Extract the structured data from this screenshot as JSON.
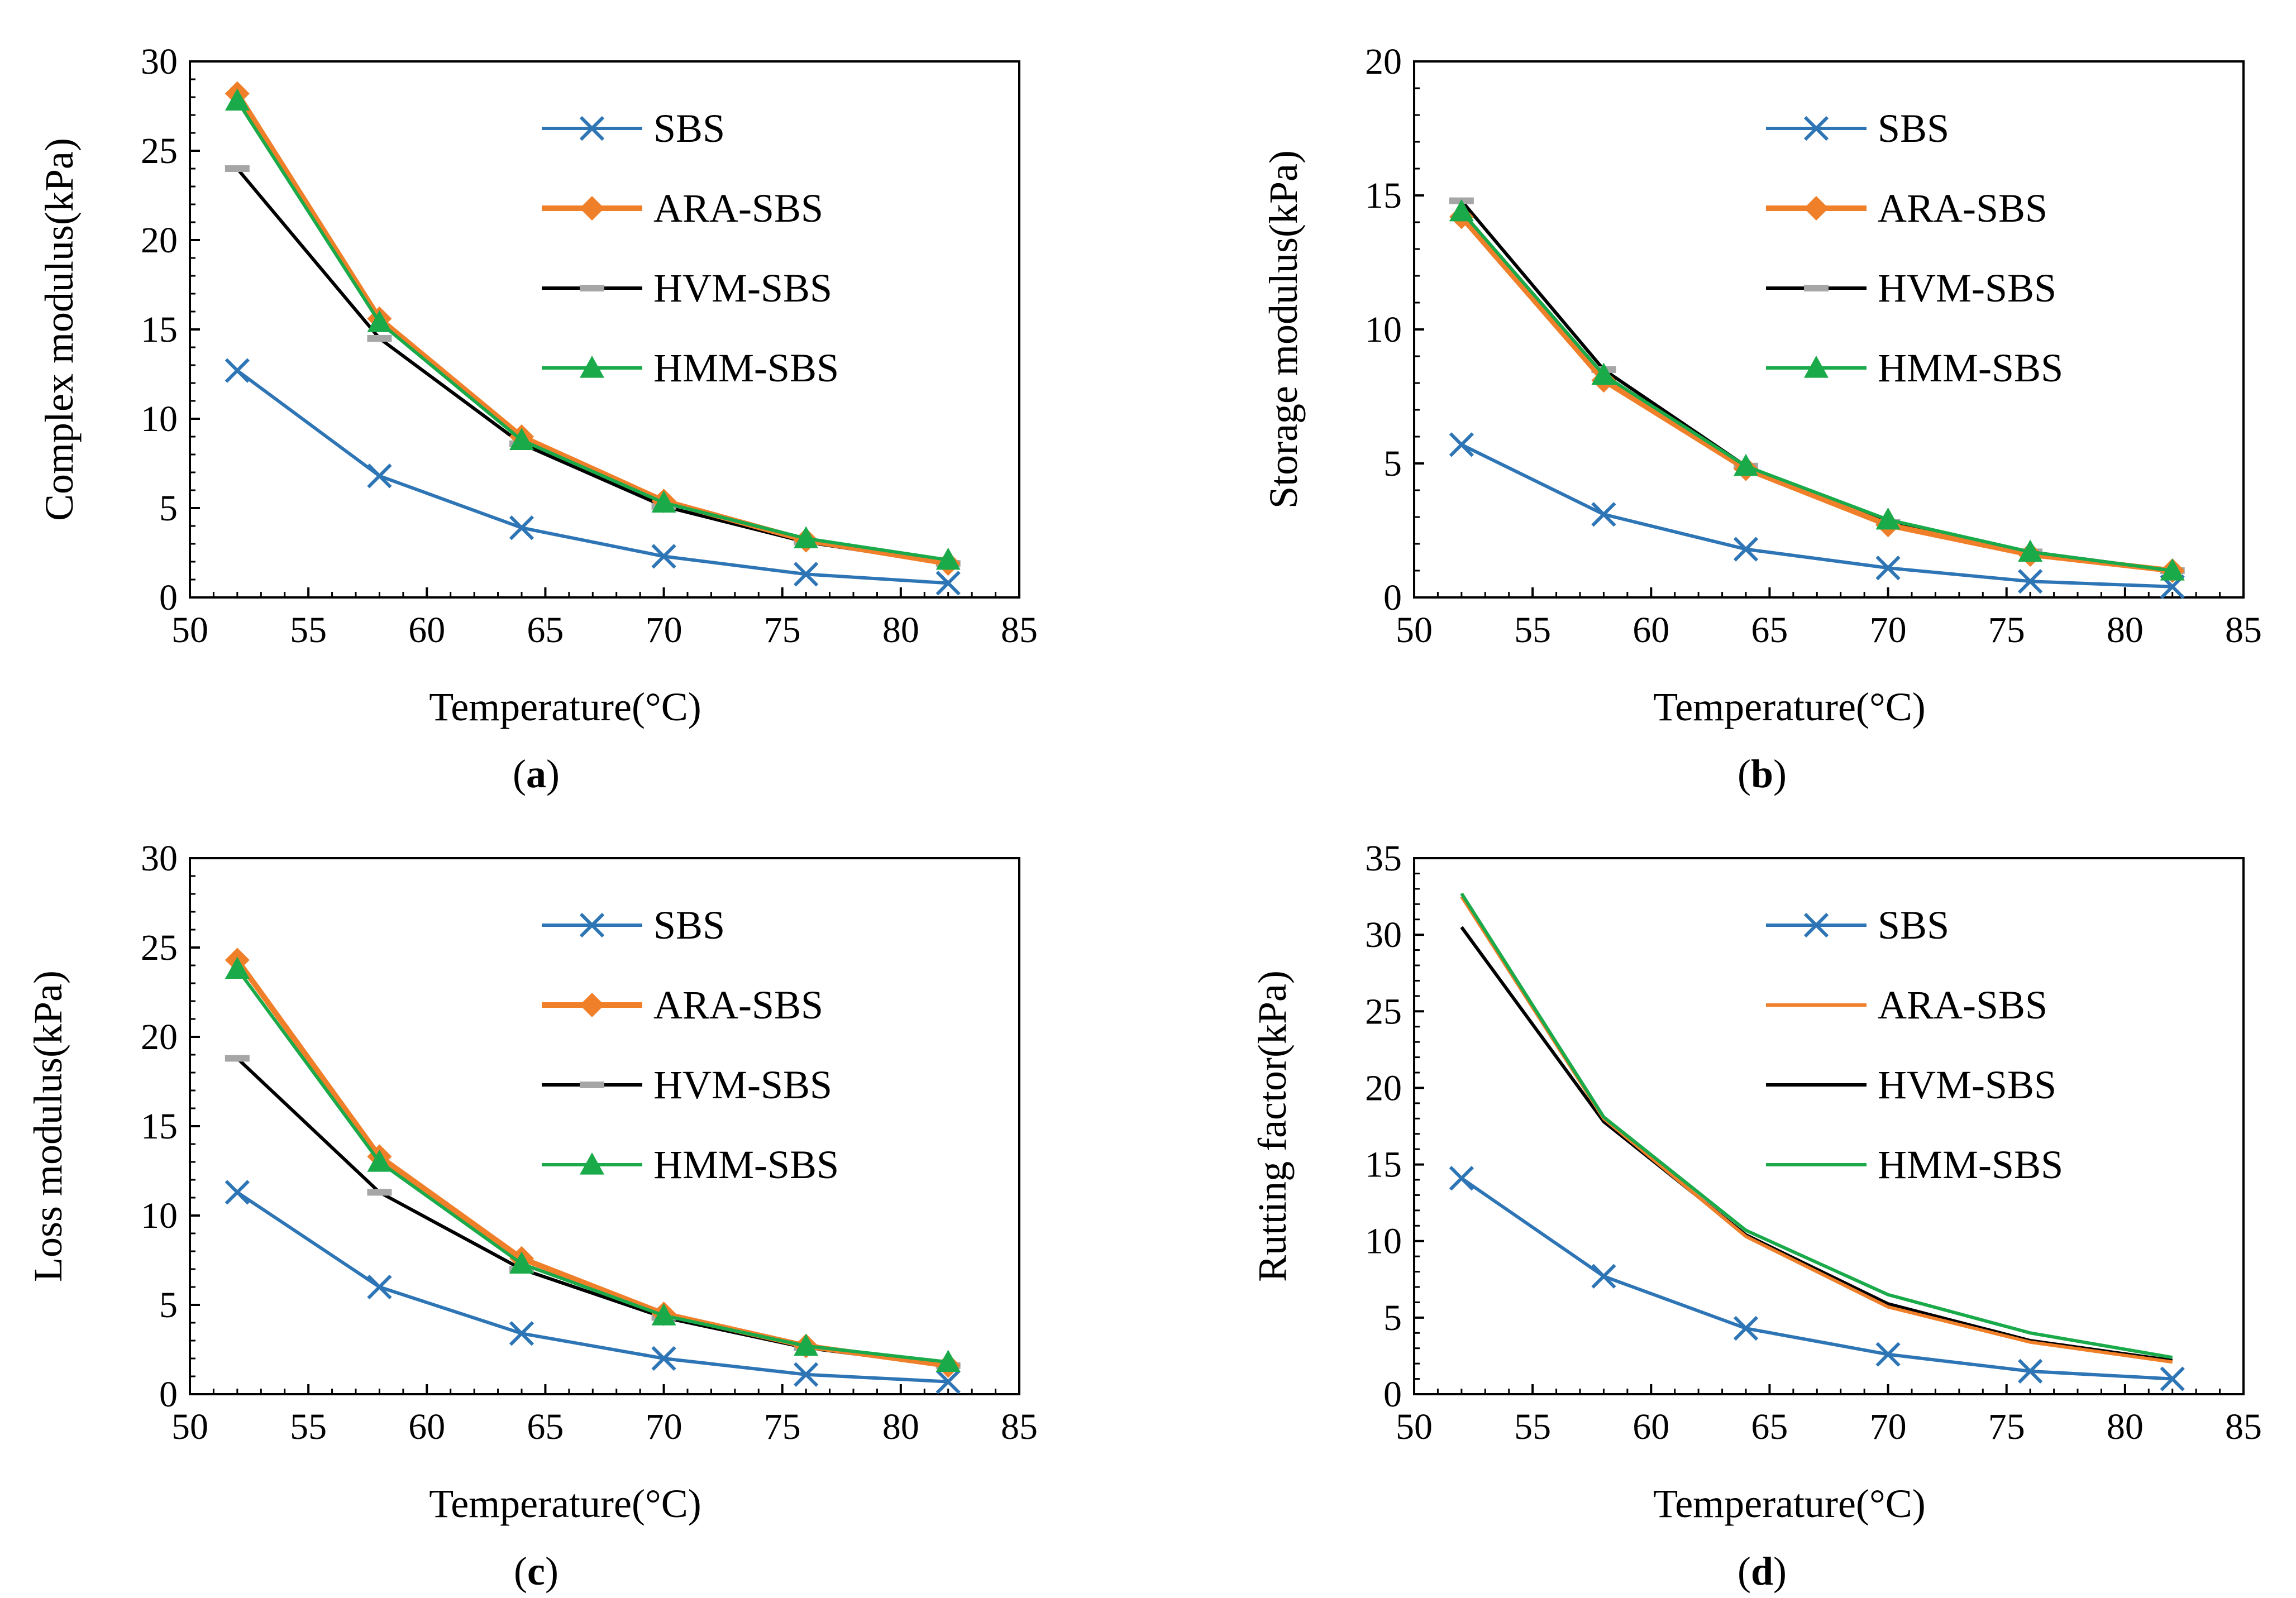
{
  "series_styles": {
    "SBS": {
      "color": "#2E75B6",
      "marker": "x"
    },
    "ARA-SBS": {
      "color": "#F07F2A",
      "marker": "diamond"
    },
    "HVM-SBS": {
      "color": "#000000",
      "marker": "dash",
      "marker_color": "#A6A6A6"
    },
    "HMM-SBS": {
      "color": "#1AAA4A",
      "marker": "triangle"
    }
  },
  "chart_data": [
    {
      "id": "a",
      "type": "line",
      "caption_letter": "a",
      "xlabel": "Temperature(°C)",
      "ylabel": "Complex modulus(kPa)",
      "xlim": [
        50,
        85
      ],
      "ylim": [
        0,
        30
      ],
      "xticks": [
        50,
        55,
        60,
        65,
        70,
        75,
        80,
        85
      ],
      "yticks": [
        0,
        5,
        10,
        15,
        20,
        25,
        30
      ],
      "show_markers": true,
      "x": [
        52,
        58,
        64,
        70,
        76,
        82
      ],
      "series": [
        {
          "name": "SBS",
          "values": [
            12.7,
            6.8,
            3.9,
            2.3,
            1.3,
            0.8
          ]
        },
        {
          "name": "ARA-SBS",
          "values": [
            28.2,
            15.6,
            9.0,
            5.4,
            3.2,
            1.9
          ]
        },
        {
          "name": "HVM-SBS",
          "values": [
            24.0,
            14.5,
            8.6,
            5.1,
            3.1,
            1.9
          ]
        },
        {
          "name": "HMM-SBS",
          "values": [
            27.8,
            15.4,
            8.8,
            5.3,
            3.3,
            2.1
          ]
        }
      ],
      "legend": [
        "SBS",
        "ARA-SBS",
        "HVM-SBS",
        "HMM-SBS"
      ]
    },
    {
      "id": "b",
      "type": "line",
      "caption_letter": "b",
      "xlabel": "Temperature(°C)",
      "ylabel": "Storage modulus(kPa)",
      "xlim": [
        50,
        85
      ],
      "ylim": [
        0,
        20
      ],
      "xticks": [
        50,
        55,
        60,
        65,
        70,
        75,
        80,
        85
      ],
      "yticks": [
        0,
        5,
        10,
        15,
        20
      ],
      "show_markers": true,
      "x": [
        52,
        58,
        64,
        70,
        76,
        82
      ],
      "series": [
        {
          "name": "SBS",
          "values": [
            5.7,
            3.1,
            1.8,
            1.1,
            0.6,
            0.4
          ]
        },
        {
          "name": "ARA-SBS",
          "values": [
            14.2,
            8.1,
            4.8,
            2.7,
            1.6,
            1.0
          ]
        },
        {
          "name": "HVM-SBS",
          "values": [
            14.8,
            8.5,
            4.9,
            2.8,
            1.7,
            1.0
          ]
        },
        {
          "name": "HMM-SBS",
          "values": [
            14.4,
            8.3,
            4.9,
            2.9,
            1.7,
            1.0
          ]
        }
      ],
      "legend": [
        "SBS",
        "ARA-SBS",
        "HVM-SBS",
        "HMM-SBS"
      ]
    },
    {
      "id": "c",
      "type": "line",
      "caption_letter": "c",
      "xlabel": "Temperature(°C)",
      "ylabel": "Loss modulus(kPa)",
      "xlim": [
        50,
        85
      ],
      "ylim": [
        0,
        30
      ],
      "xticks": [
        50,
        55,
        60,
        65,
        70,
        75,
        80,
        85
      ],
      "yticks": [
        0,
        5,
        10,
        15,
        20,
        25,
        30
      ],
      "show_markers": true,
      "x": [
        52,
        58,
        64,
        70,
        76,
        82
      ],
      "series": [
        {
          "name": "SBS",
          "values": [
            11.3,
            6.0,
            3.4,
            2.0,
            1.1,
            0.7
          ]
        },
        {
          "name": "ARA-SBS",
          "values": [
            24.3,
            13.3,
            7.6,
            4.5,
            2.7,
            1.6
          ]
        },
        {
          "name": "HVM-SBS",
          "values": [
            18.8,
            11.3,
            7.0,
            4.3,
            2.6,
            1.6
          ]
        },
        {
          "name": "HMM-SBS",
          "values": [
            23.8,
            13.0,
            7.3,
            4.4,
            2.7,
            1.8
          ]
        }
      ],
      "legend": [
        "SBS",
        "ARA-SBS",
        "HVM-SBS",
        "HMM-SBS"
      ]
    },
    {
      "id": "d",
      "type": "line",
      "caption_letter": "d",
      "xlabel": "Temperature(°C)",
      "ylabel": "Rutting factor(kPa)",
      "xlim": [
        50,
        85
      ],
      "ylim": [
        0,
        35
      ],
      "xticks": [
        50,
        55,
        60,
        65,
        70,
        75,
        80,
        85
      ],
      "yticks": [
        0,
        5,
        10,
        15,
        20,
        25,
        30,
        35
      ],
      "show_markers": false,
      "x": [
        52,
        58,
        64,
        70,
        76,
        82
      ],
      "series": [
        {
          "name": "SBS",
          "values": [
            14.1,
            7.7,
            4.3,
            2.6,
            1.5,
            1.0
          ],
          "markers": true
        },
        {
          "name": "ARA-SBS",
          "values": [
            32.5,
            18.0,
            10.3,
            5.7,
            3.4,
            2.1
          ]
        },
        {
          "name": "HVM-SBS",
          "values": [
            30.5,
            17.8,
            10.4,
            5.9,
            3.5,
            2.2
          ]
        },
        {
          "name": "HMM-SBS",
          "values": [
            32.7,
            18.1,
            10.7,
            6.5,
            4.0,
            2.4
          ]
        }
      ],
      "legend": [
        "SBS",
        "ARA-SBS",
        "HVM-SBS",
        "HMM-SBS"
      ]
    }
  ]
}
